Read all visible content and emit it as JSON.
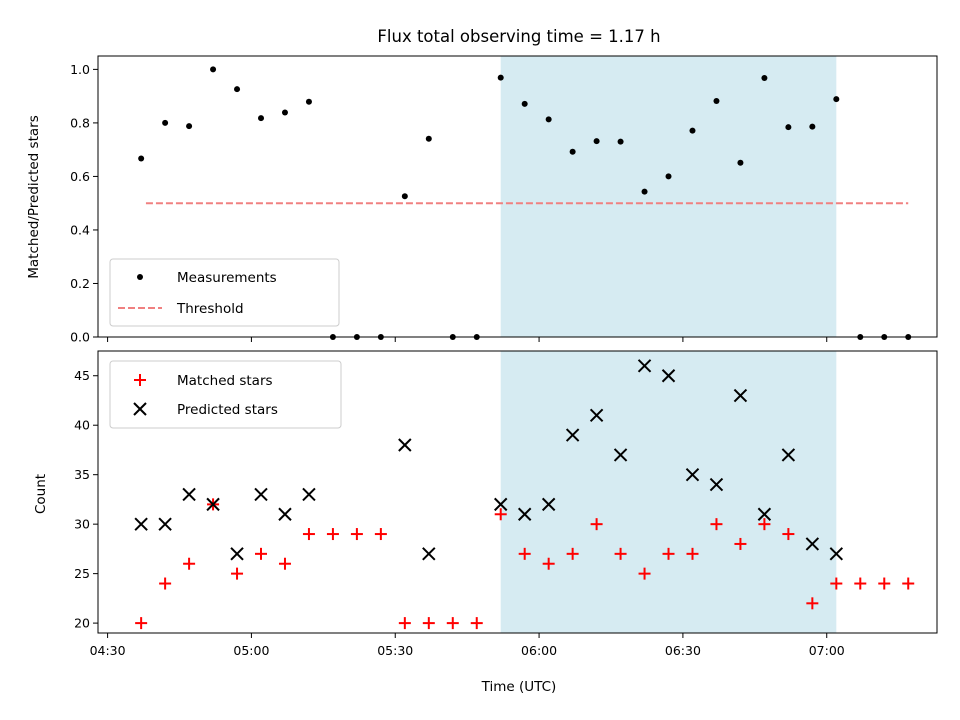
{
  "chart_data": [
    {
      "type": "scatter",
      "title": "Flux total observing time = 1.17 h",
      "xlabel": "",
      "ylabel": "Matched/Predicted stars",
      "ylim": [
        0,
        1.05
      ],
      "yticks": [
        "0.0",
        "0.2",
        "0.4",
        "0.6",
        "0.8",
        "1.0"
      ],
      "legend": [
        "Measurements",
        "Threshold"
      ],
      "legend_position": "lower-left",
      "shaded_interval": [
        "05:52",
        "07:02"
      ],
      "shade_color": "#add8e6",
      "threshold": {
        "value": 0.5,
        "x_range": [
          "04:38",
          "07:17"
        ],
        "color": "#f08080"
      },
      "series": [
        {
          "name": "Measurements",
          "x": [
            "04:37",
            "04:42",
            "04:47",
            "04:52",
            "04:57",
            "05:02",
            "05:07",
            "05:12",
            "05:17",
            "05:22",
            "05:27",
            "05:32",
            "05:37",
            "05:42",
            "05:47",
            "05:52",
            "05:57",
            "06:02",
            "06:07",
            "06:12",
            "06:17",
            "06:22",
            "06:27",
            "06:32",
            "06:37",
            "06:42",
            "06:47",
            "06:52",
            "06:57",
            "07:02",
            "07:07",
            "07:12",
            "07:17"
          ],
          "values": [
            0.667,
            0.8,
            0.788,
            1.0,
            0.926,
            0.818,
            0.839,
            0.879,
            0,
            0,
            0,
            0.526,
            0.741,
            0,
            0,
            0.969,
            0.871,
            0.813,
            0.692,
            0.732,
            0.73,
            0.543,
            0.6,
            0.771,
            0.882,
            0.651,
            0.968,
            0.784,
            0.786,
            0.889,
            0,
            0,
            0
          ]
        }
      ]
    },
    {
      "type": "scatter",
      "title": "",
      "xlabel": "Time (UTC)",
      "ylabel": "Count",
      "ylim": [
        19,
        47.5
      ],
      "yticks": [
        "20",
        "25",
        "30",
        "35",
        "40",
        "45"
      ],
      "xticks": [
        "04:30",
        "05:00",
        "05:30",
        "06:00",
        "06:30",
        "07:00"
      ],
      "legend": [
        "Matched stars",
        "Predicted stars"
      ],
      "legend_position": "upper-left",
      "shaded_interval": [
        "05:52",
        "07:02"
      ],
      "series": [
        {
          "name": "Matched stars",
          "color": "#ff0000",
          "x": [
            "04:37",
            "04:42",
            "04:47",
            "04:52",
            "04:57",
            "05:02",
            "05:07",
            "05:12",
            "05:17",
            "05:22",
            "05:27",
            "05:32",
            "05:37",
            "05:42",
            "05:47",
            "05:52",
            "05:57",
            "06:02",
            "06:07",
            "06:12",
            "06:17",
            "06:22",
            "06:27",
            "06:32",
            "06:37",
            "06:42",
            "06:47",
            "06:52",
            "06:57",
            "07:02",
            "07:07",
            "07:12",
            "07:17"
          ],
          "values": [
            20,
            24,
            26,
            32,
            25,
            27,
            26,
            29,
            29,
            29,
            29,
            20,
            20,
            20,
            20,
            31,
            27,
            26,
            27,
            30,
            27,
            25,
            27,
            27,
            30,
            28,
            30,
            29,
            22,
            24,
            24,
            24,
            24
          ]
        },
        {
          "name": "Predicted stars",
          "color": "#000000",
          "x": [
            "04:37",
            "04:42",
            "04:47",
            "04:52",
            "04:57",
            "05:02",
            "05:07",
            "05:12",
            "05:32",
            "05:37",
            "05:52",
            "05:57",
            "06:02",
            "06:07",
            "06:12",
            "06:17",
            "06:22",
            "06:27",
            "06:32",
            "06:37",
            "06:42",
            "06:47",
            "06:52",
            "06:57",
            "07:02"
          ],
          "values": [
            30,
            30,
            33,
            32,
            27,
            33,
            31,
            33,
            38,
            27,
            32,
            31,
            32,
            39,
            41,
            37,
            46,
            45,
            35,
            34,
            43,
            31,
            37,
            28,
            27
          ]
        }
      ]
    }
  ]
}
